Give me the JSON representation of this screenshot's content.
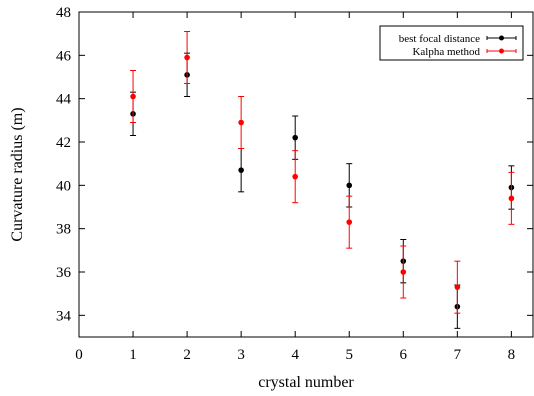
{
  "chart_data": {
    "type": "scatter",
    "title": "",
    "xlabel": "crystal number",
    "ylabel": "Curvature radius (m)",
    "xlim": [
      0,
      8.4
    ],
    "ylim": [
      33,
      48
    ],
    "xticks": [
      0,
      1,
      2,
      3,
      4,
      5,
      6,
      7,
      8
    ],
    "yticks": [
      34,
      36,
      38,
      40,
      42,
      44,
      46,
      48
    ],
    "grid": false,
    "legend_position": "top-right",
    "error_bars": true,
    "series": [
      {
        "name": "best focal distance",
        "color": "#000000",
        "x": [
          1,
          2,
          3,
          4,
          5,
          6,
          7,
          8
        ],
        "y": [
          43.3,
          45.1,
          40.7,
          42.2,
          40.0,
          36.5,
          34.4,
          39.9
        ],
        "yerr": [
          1.0,
          1.0,
          1.0,
          1.0,
          1.0,
          1.0,
          1.0,
          1.0
        ]
      },
      {
        "name": "Kalpha method",
        "color": "#ff0000",
        "x": [
          1,
          2,
          3,
          4,
          5,
          6,
          7,
          8
        ],
        "y": [
          44.1,
          45.9,
          42.9,
          40.4,
          38.3,
          36.0,
          35.3,
          39.4
        ],
        "yerr": [
          1.2,
          1.2,
          1.2,
          1.2,
          1.2,
          1.2,
          1.2,
          1.2
        ]
      }
    ]
  }
}
